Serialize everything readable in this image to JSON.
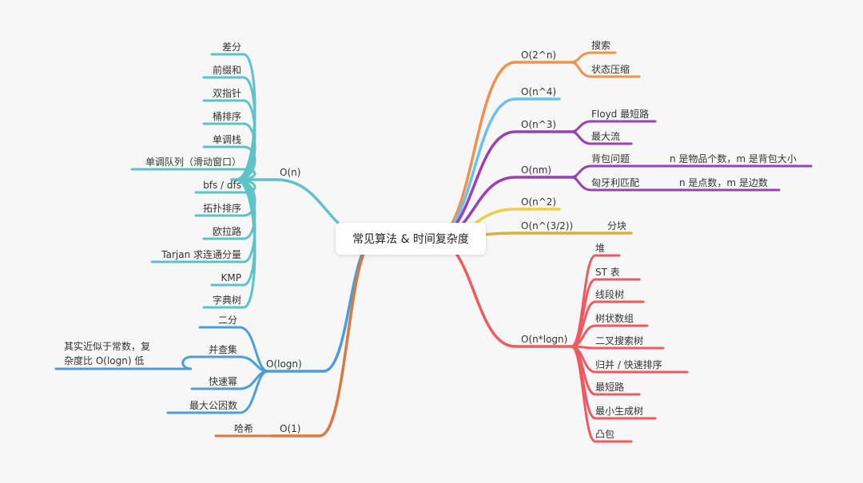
{
  "root": {
    "label": "常见算法 & 时间复杂度"
  },
  "colors": {
    "teal": "#5cc3c8",
    "blue": "#4a9edd",
    "brown": "#d9793b",
    "orange": "#f2924a",
    "lightblue": "#6ac0ef",
    "purple": "#9b3fb5",
    "yellow": "#f3cc45",
    "gold": "#d8b233",
    "red": "#ee5a60"
  },
  "branches": [
    {
      "id": "on",
      "label": "O(n)",
      "side": "left",
      "color": "teal",
      "children": [
        {
          "label": "差分"
        },
        {
          "label": "前缀和"
        },
        {
          "label": "双指针"
        },
        {
          "label": "桶排序"
        },
        {
          "label": "单调栈"
        },
        {
          "label": "单调队列（滑动窗口）"
        },
        {
          "label": "bfs / dfs"
        },
        {
          "label": "拓扑排序"
        },
        {
          "label": "欧拉路"
        },
        {
          "label": "Tarjan 求连通分量"
        },
        {
          "label": "KMP"
        },
        {
          "label": "字典树"
        }
      ]
    },
    {
      "id": "ologn",
      "label": "O(logn)",
      "side": "left",
      "color": "blue",
      "children": [
        {
          "label": "二分"
        },
        {
          "label": "并查集",
          "note": "其实近似于常数，复\n杂度比 O(logn) 低"
        },
        {
          "label": "快速幂"
        },
        {
          "label": "最大公因数"
        }
      ]
    },
    {
      "id": "o1",
      "label": "O(1)",
      "side": "left",
      "color": "brown",
      "children": [
        {
          "label": "哈希"
        }
      ]
    },
    {
      "id": "o2n",
      "label": "O(2^n)",
      "side": "right",
      "color": "orange",
      "children": [
        {
          "label": "搜索"
        },
        {
          "label": "状态压缩"
        }
      ]
    },
    {
      "id": "on4",
      "label": "O(n^4)",
      "side": "right",
      "color": "lightblue",
      "children": []
    },
    {
      "id": "on3",
      "label": "O(n^3)",
      "side": "right",
      "color": "purple",
      "children": [
        {
          "label": "Floyd 最短路"
        },
        {
          "label": "最大流"
        }
      ]
    },
    {
      "id": "onm",
      "label": "O(nm)",
      "side": "right",
      "color": "purple",
      "children": [
        {
          "label": "背包问题",
          "note": "n 是物品个数，m 是背包大小"
        },
        {
          "label": "匈牙利匹配",
          "note": "n 是点数，m 是边数"
        }
      ]
    },
    {
      "id": "on2",
      "label": "O(n^2)",
      "side": "right",
      "color": "yellow",
      "children": []
    },
    {
      "id": "on32",
      "label": "O(n^(3/2))",
      "side": "right",
      "color": "gold",
      "children": [
        {
          "label": "分块"
        }
      ]
    },
    {
      "id": "onlogn",
      "label": "O(n*logn)",
      "side": "right",
      "color": "red",
      "children": [
        {
          "label": "堆"
        },
        {
          "label": "ST 表"
        },
        {
          "label": "线段树"
        },
        {
          "label": "树状数组"
        },
        {
          "label": "二叉搜索树"
        },
        {
          "label": "归并 / 快速排序"
        },
        {
          "label": "最短路"
        },
        {
          "label": "最小生成树"
        },
        {
          "label": "凸包"
        }
      ]
    }
  ]
}
